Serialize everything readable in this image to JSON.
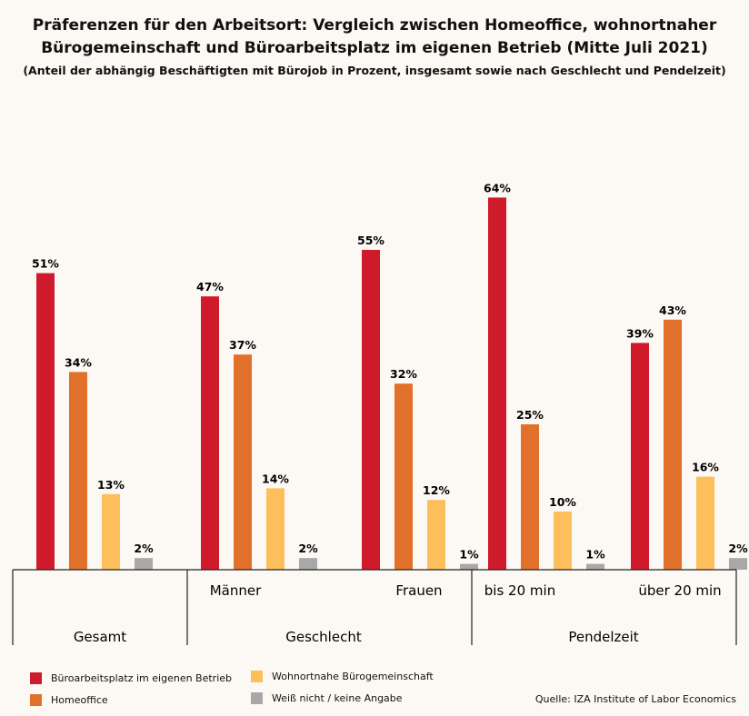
{
  "chart_data": {
    "type": "bar",
    "title": "Präferenzen für den Arbeitsort: Vergleich zwischen Homeoffice, wohnortnaher Bürogemeinschaft und Büroarbeitsplatz im eigenen Betrieb (Mitte Juli 2021)",
    "title_line1": "Präferenzen für den Arbeitsort: Vergleich zwischen Homeoffice, wohnortnaher",
    "title_line2": "Bürogemeinschaft und Büroarbeitsplatz im eigenen Betrieb (Mitte Juli 2021)",
    "subtitle": "(Anteil der abhängig Beschäftigten mit Bürojob in Prozent, insgesamt sowie nach Geschlecht und Pendelzeit)",
    "categories": [
      "",
      "Männer",
      "Frauen",
      "bis 20 min",
      "über 20 min"
    ],
    "groups": [
      {
        "label": "Gesamt",
        "categories": 1
      },
      {
        "label": "Geschlecht",
        "categories": 2
      },
      {
        "label": "Pendelzeit",
        "categories": 2
      }
    ],
    "series": [
      {
        "name": "Büroarbeitsplatz im eigenen Betrieb",
        "color": "#cf1a2c",
        "values": [
          51,
          47,
          55,
          64,
          39
        ]
      },
      {
        "name": "Homeoffice",
        "color": "#e0702a",
        "values": [
          34,
          37,
          32,
          25,
          43
        ]
      },
      {
        "name": "Wohnortnahe Bürogemeinschaft",
        "color": "#fdbf5b",
        "values": [
          13,
          14,
          12,
          10,
          16
        ]
      },
      {
        "name": "Weiß nicht / keine Angabe",
        "color": "#a8a8a8",
        "values": [
          2,
          2,
          1,
          1,
          2
        ]
      }
    ],
    "value_suffix": "%",
    "ylim": [
      0,
      64
    ],
    "grid": false,
    "legend_position": "bottom-left"
  },
  "source": "Quelle: IZA Institute of Labor Economics"
}
